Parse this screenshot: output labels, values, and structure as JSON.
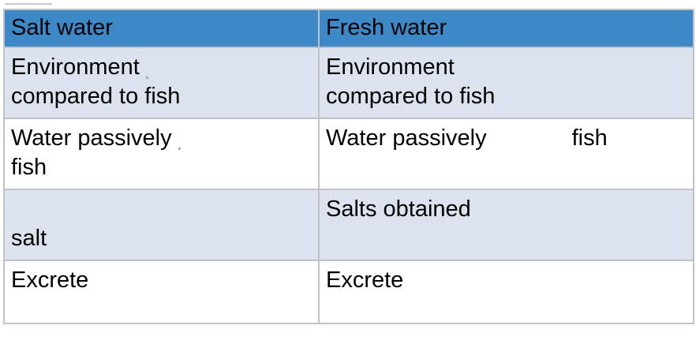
{
  "table": {
    "headers": {
      "salt": "Salt water",
      "fresh": "Fresh water"
    },
    "rows": [
      {
        "salt": [
          "Environment",
          "compared to fish"
        ],
        "fresh": [
          "Environment",
          "compared to fish"
        ]
      },
      {
        "salt": [
          "Water passively",
          "fish"
        ],
        "fresh": [
          "Water passively",
          "fish"
        ]
      },
      {
        "salt": [
          "salt"
        ],
        "fresh": [
          "Salts obtained"
        ]
      },
      {
        "salt": [
          "Excrete"
        ],
        "fresh": [
          "Excrete"
        ]
      }
    ]
  }
}
